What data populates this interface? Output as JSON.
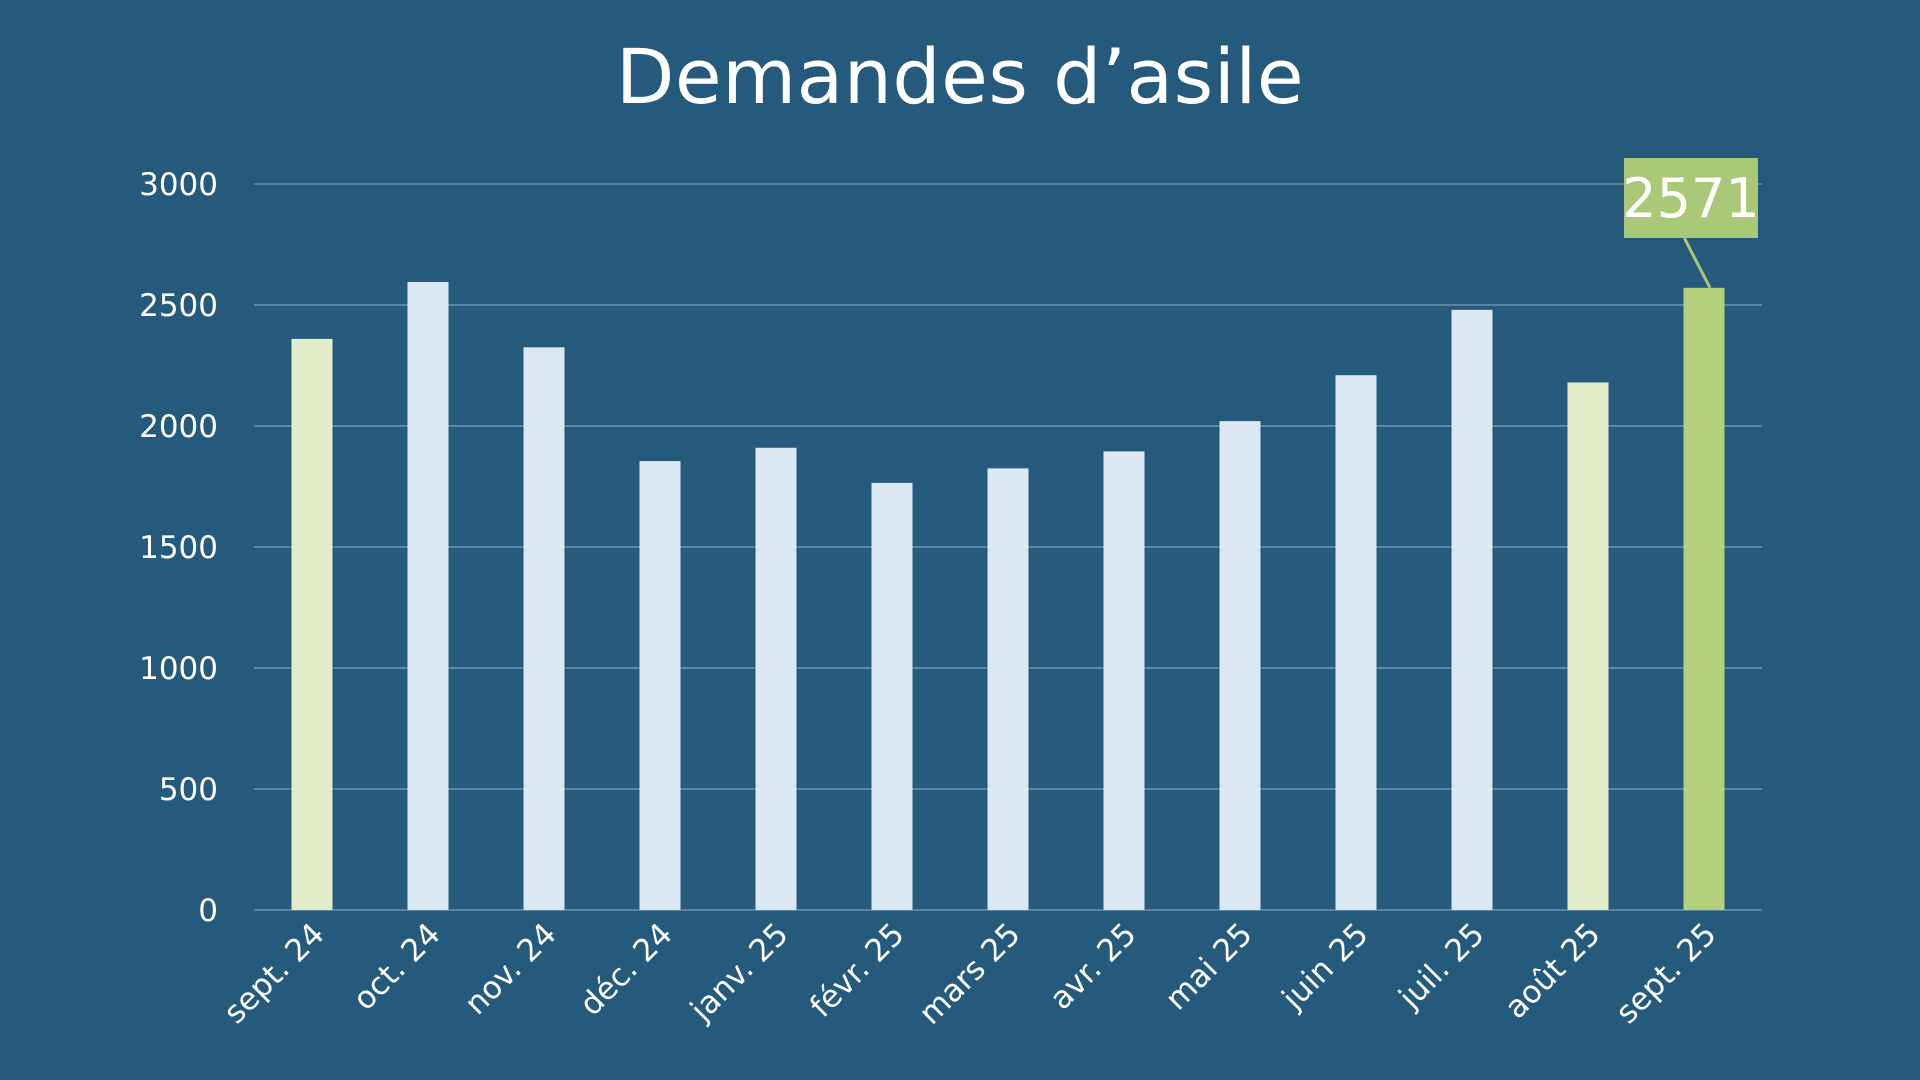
{
  "chart_data": {
    "type": "bar",
    "title": "Demandes d’asile",
    "categories": [
      "sept. 24",
      "oct. 24",
      "nov. 24",
      "déc. 24",
      "janv. 25",
      "févr. 25",
      "mars 25",
      "avr. 25",
      "mai 25",
      "juin 25",
      "juil. 25",
      "août 25",
      "sept. 25"
    ],
    "values": [
      2360,
      2595,
      2325,
      1855,
      1910,
      1765,
      1825,
      1895,
      2020,
      2210,
      2480,
      2180,
      2571
    ],
    "bar_colors": [
      "#e2ecc9",
      "#dde8f5",
      "#dde8f5",
      "#dde8f5",
      "#dde8f5",
      "#dde8f5",
      "#dde8f5",
      "#dde8f5",
      "#dde8f5",
      "#dde8f5",
      "#dde8f5",
      "#e2ecc9",
      "#b3cf7c"
    ],
    "ylim": [
      0,
      3000
    ],
    "yticks": [
      0,
      500,
      1000,
      1500,
      2000,
      2500,
      3000
    ],
    "grid": true,
    "xlabel": "",
    "ylabel": "",
    "annotation": {
      "category": "sept. 25",
      "text": "2571",
      "box_color": "#a9c878"
    }
  },
  "colors": {
    "background": "#255a7c",
    "grid": "#7f9db3",
    "text": "#ffffff"
  }
}
